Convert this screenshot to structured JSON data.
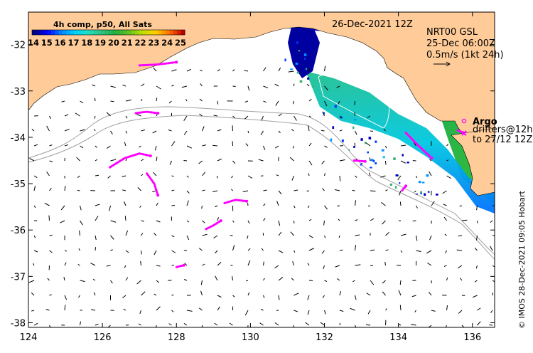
{
  "chart_data": {
    "type": "map",
    "title": "26-Dec-2021 12Z",
    "product": {
      "line1": "NRT00 GSL",
      "line2": "25-Dec 06:00Z",
      "line3": "0.5m/s (1kt 24h)"
    },
    "colorbar": {
      "title": "4h comp, p50, All Sats",
      "ticks": [
        "14",
        "15",
        "16",
        "17",
        "18",
        "19",
        "20",
        "21",
        "22",
        "23",
        "24",
        "25"
      ],
      "colors": [
        "#00007f",
        "#0000ff",
        "#0080ff",
        "#00d0ff",
        "#20e0c0",
        "#30c080",
        "#20b040",
        "#60c020",
        "#c0e000",
        "#ffd000",
        "#ff7000",
        "#c00000"
      ]
    },
    "xaxis": {
      "ticks": [
        "124",
        "126",
        "128",
        "130",
        "132",
        "134",
        "136"
      ],
      "range": [
        124,
        136.6
      ]
    },
    "yaxis": {
      "ticks": [
        "-32",
        "-33",
        "-34",
        "-35",
        "-36",
        "-37",
        "-38"
      ],
      "range": [
        -38.1,
        -31.3
      ]
    },
    "legend": {
      "argo_label": "Argo",
      "drifters_line1": "drifters@12h",
      "drifters_line2": "to 27/12 12Z",
      "argo_color": "#ff00ff",
      "drifter_color": "#ff00ff"
    },
    "credit": "© IMOS 28-Dec-2021 09:05 Hobart",
    "colors": {
      "land": "#ffcc99",
      "sea": "#ffffff",
      "bathymetry": "#a0a0a0",
      "vectors": "#000000"
    },
    "drifter_tracks": [
      {
        "points": [
          [
            127.0,
            -32.45
          ],
          [
            127.5,
            -32.43
          ],
          [
            128.0,
            -32.38
          ]
        ]
      },
      {
        "points": [
          [
            126.9,
            -33.48
          ],
          [
            127.2,
            -33.45
          ],
          [
            127.5,
            -33.48
          ]
        ]
      },
      {
        "points": [
          [
            126.2,
            -34.65
          ],
          [
            126.6,
            -34.45
          ],
          [
            127.0,
            -34.35
          ],
          [
            127.3,
            -34.4
          ]
        ]
      },
      {
        "points": [
          [
            127.2,
            -34.78
          ],
          [
            127.4,
            -35.0
          ],
          [
            127.5,
            -35.25
          ]
        ]
      },
      {
        "points": [
          [
            129.3,
            -35.42
          ],
          [
            129.6,
            -35.35
          ],
          [
            129.9,
            -35.38
          ]
        ]
      },
      {
        "points": [
          [
            128.8,
            -35.98
          ],
          [
            129.0,
            -35.9
          ],
          [
            129.2,
            -35.8
          ]
        ]
      },
      {
        "points": [
          [
            128.0,
            -36.8
          ],
          [
            128.2,
            -36.76
          ]
        ]
      },
      {
        "points": [
          [
            132.8,
            -34.5
          ],
          [
            133.1,
            -34.52
          ]
        ]
      },
      {
        "points": [
          [
            134.1,
            -35.15
          ],
          [
            134.2,
            -35.05
          ]
        ]
      },
      {
        "points": [
          [
            134.2,
            -33.9
          ],
          [
            134.5,
            -34.15
          ],
          [
            134.9,
            -34.45
          ]
        ]
      },
      {
        "points": [
          [
            135.6,
            -33.85
          ],
          [
            135.75,
            -33.9
          ]
        ]
      }
    ]
  }
}
